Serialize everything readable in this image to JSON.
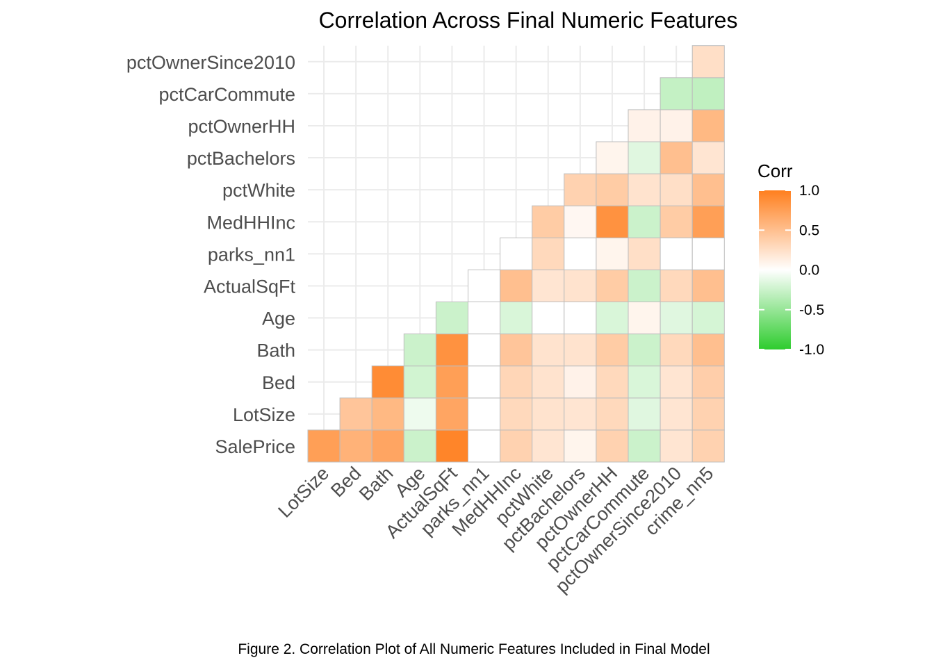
{
  "chart_data": {
    "type": "heatmap",
    "title": "Correlation Across Final Numeric Features",
    "caption": "Figure 2. Correlation Plot of All Numeric Features Included in Final Model",
    "x_categories": [
      "LotSize",
      "Bed",
      "Bath",
      "Age",
      "ActualSqFt",
      "parks_nn1",
      "MedHHInc",
      "pctWhite",
      "pctBachelors",
      "pctOwnerHH",
      "pctCarCommute",
      "pctOwnerSince2010",
      "crime_nn5"
    ],
    "y_categories": [
      "SalePrice",
      "LotSize",
      "Bed",
      "Bath",
      "Age",
      "ActualSqFt",
      "parks_nn1",
      "MedHHInc",
      "pctWhite",
      "pctBachelors",
      "pctOwnerHH",
      "pctCarCommute",
      "pctOwnerSince2010"
    ],
    "legend": {
      "title": "Corr",
      "ticks": [
        "1.0",
        "0.5",
        "0.0",
        "-0.5",
        "-1.0"
      ],
      "range": [
        -1,
        1
      ],
      "low_color": "#2ecc2e",
      "mid_color": "#ffffff",
      "high_color": "#ff7f1e",
      "position": "right"
    },
    "grid": true,
    "cells": [
      {
        "y": "SalePrice",
        "x": "LotSize",
        "value": 0.75
      },
      {
        "y": "SalePrice",
        "x": "Bed",
        "value": 0.6
      },
      {
        "y": "SalePrice",
        "x": "Bath",
        "value": 0.7
      },
      {
        "y": "SalePrice",
        "x": "Age",
        "value": -0.25
      },
      {
        "y": "SalePrice",
        "x": "ActualSqFt",
        "value": 0.95
      },
      {
        "y": "SalePrice",
        "x": "parks_nn1",
        "value": 0.0
      },
      {
        "y": "SalePrice",
        "x": "MedHHInc",
        "value": 0.35
      },
      {
        "y": "SalePrice",
        "x": "pctWhite",
        "value": 0.2
      },
      {
        "y": "SalePrice",
        "x": "pctBachelors",
        "value": 0.08
      },
      {
        "y": "SalePrice",
        "x": "pctOwnerHH",
        "value": 0.35
      },
      {
        "y": "SalePrice",
        "x": "pctCarCommute",
        "value": -0.25
      },
      {
        "y": "SalePrice",
        "x": "pctOwnerSince2010",
        "value": 0.2
      },
      {
        "y": "SalePrice",
        "x": "crime_nn5",
        "value": 0.35
      },
      {
        "y": "LotSize",
        "x": "Bed",
        "value": 0.45
      },
      {
        "y": "LotSize",
        "x": "Bath",
        "value": 0.55
      },
      {
        "y": "LotSize",
        "x": "Age",
        "value": -0.08
      },
      {
        "y": "LotSize",
        "x": "ActualSqFt",
        "value": 0.7
      },
      {
        "y": "LotSize",
        "x": "parks_nn1",
        "value": 0.0
      },
      {
        "y": "LotSize",
        "x": "MedHHInc",
        "value": 0.3
      },
      {
        "y": "LotSize",
        "x": "pctWhite",
        "value": 0.22
      },
      {
        "y": "LotSize",
        "x": "pctBachelors",
        "value": 0.2
      },
      {
        "y": "LotSize",
        "x": "pctOwnerHH",
        "value": 0.3
      },
      {
        "y": "LotSize",
        "x": "pctCarCommute",
        "value": -0.15
      },
      {
        "y": "LotSize",
        "x": "pctOwnerSince2010",
        "value": 0.2
      },
      {
        "y": "LotSize",
        "x": "crime_nn5",
        "value": 0.35
      },
      {
        "y": "Bed",
        "x": "Bath",
        "value": 0.9
      },
      {
        "y": "Bed",
        "x": "Age",
        "value": -0.22
      },
      {
        "y": "Bed",
        "x": "ActualSqFt",
        "value": 0.75
      },
      {
        "y": "Bed",
        "x": "parks_nn1",
        "value": 0.0
      },
      {
        "y": "Bed",
        "x": "MedHHInc",
        "value": 0.32
      },
      {
        "y": "Bed",
        "x": "pctWhite",
        "value": 0.22
      },
      {
        "y": "Bed",
        "x": "pctBachelors",
        "value": 0.1
      },
      {
        "y": "Bed",
        "x": "pctOwnerHH",
        "value": 0.3
      },
      {
        "y": "Bed",
        "x": "pctCarCommute",
        "value": -0.18
      },
      {
        "y": "Bed",
        "x": "pctOwnerSince2010",
        "value": 0.2
      },
      {
        "y": "Bed",
        "x": "crime_nn5",
        "value": 0.38
      },
      {
        "y": "Bath",
        "x": "Age",
        "value": -0.25
      },
      {
        "y": "Bath",
        "x": "ActualSqFt",
        "value": 0.85
      },
      {
        "y": "Bath",
        "x": "parks_nn1",
        "value": 0.0
      },
      {
        "y": "Bath",
        "x": "MedHHInc",
        "value": 0.45
      },
      {
        "y": "Bath",
        "x": "pctWhite",
        "value": 0.22
      },
      {
        "y": "Bath",
        "x": "pctBachelors",
        "value": 0.22
      },
      {
        "y": "Bath",
        "x": "pctOwnerHH",
        "value": 0.4
      },
      {
        "y": "Bath",
        "x": "pctCarCommute",
        "value": -0.25
      },
      {
        "y": "Bath",
        "x": "pctOwnerSince2010",
        "value": 0.3
      },
      {
        "y": "Bath",
        "x": "crime_nn5",
        "value": 0.5
      },
      {
        "y": "Age",
        "x": "ActualSqFt",
        "value": -0.25
      },
      {
        "y": "Age",
        "x": "parks_nn1",
        "value": 0.0
      },
      {
        "y": "Age",
        "x": "MedHHInc",
        "value": -0.18
      },
      {
        "y": "Age",
        "x": "pctWhite",
        "value": 0.0
      },
      {
        "y": "Age",
        "x": "pctBachelors",
        "value": 0.0
      },
      {
        "y": "Age",
        "x": "pctOwnerHH",
        "value": -0.18
      },
      {
        "y": "Age",
        "x": "pctCarCommute",
        "value": 0.08
      },
      {
        "y": "Age",
        "x": "pctOwnerSince2010",
        "value": -0.15
      },
      {
        "y": "Age",
        "x": "crime_nn5",
        "value": -0.2
      },
      {
        "y": "ActualSqFt",
        "x": "parks_nn1",
        "value": 0.0
      },
      {
        "y": "ActualSqFt",
        "x": "MedHHInc",
        "value": 0.5
      },
      {
        "y": "ActualSqFt",
        "x": "pctWhite",
        "value": 0.2
      },
      {
        "y": "ActualSqFt",
        "x": "pctBachelors",
        "value": 0.22
      },
      {
        "y": "ActualSqFt",
        "x": "pctOwnerHH",
        "value": 0.4
      },
      {
        "y": "ActualSqFt",
        "x": "pctCarCommute",
        "value": -0.25
      },
      {
        "y": "ActualSqFt",
        "x": "pctOwnerSince2010",
        "value": 0.3
      },
      {
        "y": "ActualSqFt",
        "x": "crime_nn5",
        "value": 0.5
      },
      {
        "y": "parks_nn1",
        "x": "MedHHInc",
        "value": 0.0
      },
      {
        "y": "parks_nn1",
        "x": "pctWhite",
        "value": 0.3
      },
      {
        "y": "parks_nn1",
        "x": "pctBachelors",
        "value": 0.0
      },
      {
        "y": "parks_nn1",
        "x": "pctOwnerHH",
        "value": 0.08
      },
      {
        "y": "parks_nn1",
        "x": "pctCarCommute",
        "value": 0.25
      },
      {
        "y": "parks_nn1",
        "x": "pctOwnerSince2010",
        "value": 0.0
      },
      {
        "y": "parks_nn1",
        "x": "crime_nn5",
        "value": 0.0
      },
      {
        "y": "MedHHInc",
        "x": "pctWhite",
        "value": 0.4
      },
      {
        "y": "MedHHInc",
        "x": "pctBachelors",
        "value": 0.06
      },
      {
        "y": "MedHHInc",
        "x": "pctOwnerHH",
        "value": 0.85
      },
      {
        "y": "MedHHInc",
        "x": "pctCarCommute",
        "value": -0.25
      },
      {
        "y": "MedHHInc",
        "x": "pctOwnerSince2010",
        "value": 0.4
      },
      {
        "y": "MedHHInc",
        "x": "crime_nn5",
        "value": 0.75
      },
      {
        "y": "pctWhite",
        "x": "pctBachelors",
        "value": 0.35
      },
      {
        "y": "pctWhite",
        "x": "pctOwnerHH",
        "value": 0.4
      },
      {
        "y": "pctWhite",
        "x": "pctCarCommute",
        "value": 0.22
      },
      {
        "y": "pctWhite",
        "x": "pctOwnerSince2010",
        "value": 0.25
      },
      {
        "y": "pctWhite",
        "x": "crime_nn5",
        "value": 0.5
      },
      {
        "y": "pctBachelors",
        "x": "pctOwnerHH",
        "value": 0.08
      },
      {
        "y": "pctBachelors",
        "x": "pctCarCommute",
        "value": -0.15
      },
      {
        "y": "pctBachelors",
        "x": "pctOwnerSince2010",
        "value": 0.5
      },
      {
        "y": "pctBachelors",
        "x": "crime_nn5",
        "value": 0.2
      },
      {
        "y": "pctOwnerHH",
        "x": "pctCarCommute",
        "value": 0.1
      },
      {
        "y": "pctOwnerHH",
        "x": "pctOwnerSince2010",
        "value": 0.1
      },
      {
        "y": "pctOwnerHH",
        "x": "crime_nn5",
        "value": 0.55
      },
      {
        "y": "pctCarCommute",
        "x": "pctOwnerSince2010",
        "value": -0.28
      },
      {
        "y": "pctCarCommute",
        "x": "crime_nn5",
        "value": -0.3
      },
      {
        "y": "pctOwnerSince2010",
        "x": "crime_nn5",
        "value": 0.25
      }
    ]
  }
}
